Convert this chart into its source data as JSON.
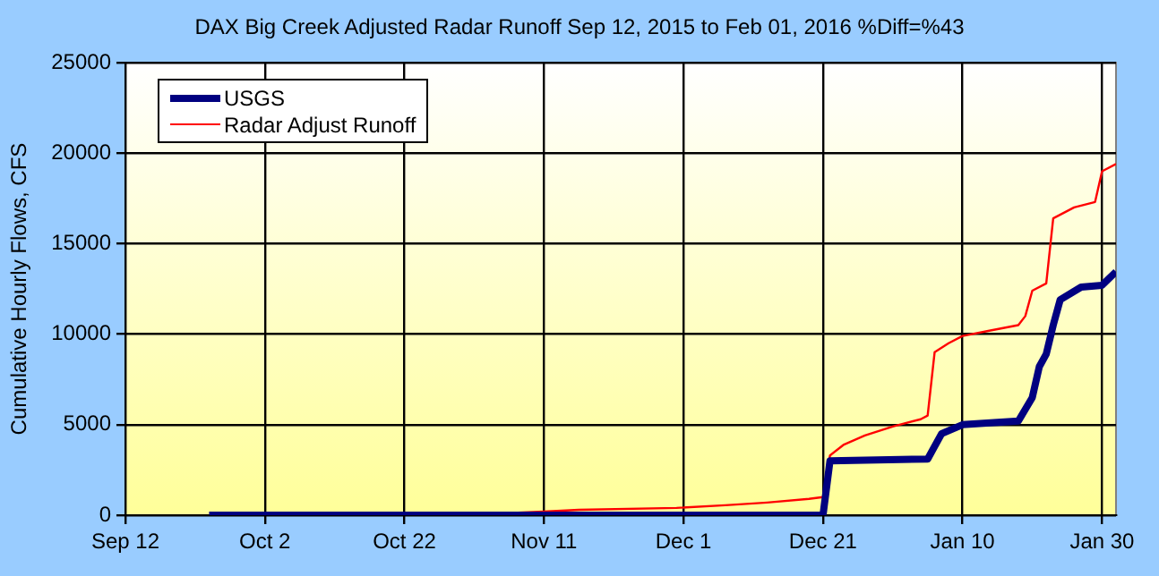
{
  "chart_data": {
    "type": "line",
    "title": "DAX Big Creek Adjusted Radar Runoff Sep 12, 2015 to Feb 01, 2016 %Diff=%43",
    "ylabel": "Cumulative Hourly Flows, CFS",
    "xlim": [
      "2015-09-12",
      "2016-02-01"
    ],
    "xticks": [
      {
        "value": "2015-09-12",
        "label": "Sep 12"
      },
      {
        "value": "2015-10-02",
        "label": "Oct 2"
      },
      {
        "value": "2015-10-22",
        "label": "Oct 22"
      },
      {
        "value": "2015-11-11",
        "label": "Nov 11"
      },
      {
        "value": "2015-12-01",
        "label": "Dec 1"
      },
      {
        "value": "2015-12-21",
        "label": "Dec 21"
      },
      {
        "value": "2016-01-10",
        "label": "Jan 10"
      },
      {
        "value": "2016-01-30",
        "label": "Jan 30"
      }
    ],
    "ylim": [
      0,
      25000
    ],
    "yticks": [
      0,
      5000,
      10000,
      15000,
      20000,
      25000
    ],
    "grid": true,
    "legend": "top left",
    "marker": "none",
    "line_style": "solid",
    "series": [
      {
        "name": "USGS",
        "color": "#000080",
        "x": [
          "2015-09-24",
          "2015-12-21",
          "2015-12-22",
          "2016-01-05",
          "2016-01-07",
          "2016-01-10",
          "2016-01-18",
          "2016-01-20",
          "2016-01-21",
          "2016-01-22",
          "2016-01-23",
          "2016-01-24",
          "2016-01-27",
          "2016-01-30",
          "2016-02-01"
        ],
        "values": [
          0,
          0,
          3000,
          3100,
          4500,
          5000,
          5200,
          6500,
          8200,
          8900,
          10500,
          11900,
          12600,
          12700,
          13450
        ]
      },
      {
        "name": "Radar Adjust Runoff",
        "color": "#ff0000",
        "x": [
          "2015-10-24",
          "2015-11-05",
          "2015-11-11",
          "2015-11-16",
          "2015-11-30",
          "2015-12-07",
          "2015-12-13",
          "2015-12-19",
          "2015-12-21",
          "2015-12-22",
          "2015-12-24",
          "2015-12-27",
          "2015-12-31",
          "2016-01-04",
          "2016-01-05",
          "2016-01-06",
          "2016-01-08",
          "2016-01-10",
          "2016-01-14",
          "2016-01-18",
          "2016-01-19",
          "2016-01-20",
          "2016-01-22",
          "2016-01-23",
          "2016-01-26",
          "2016-01-29",
          "2016-01-30",
          "2016-02-01"
        ],
        "values": [
          0,
          100,
          200,
          300,
          400,
          550,
          700,
          900,
          1000,
          3300,
          3900,
          4400,
          4900,
          5300,
          5500,
          9000,
          9500,
          9900,
          10200,
          10500,
          11000,
          12400,
          12800,
          16400,
          17000,
          17300,
          19000,
          19400
        ]
      }
    ]
  }
}
